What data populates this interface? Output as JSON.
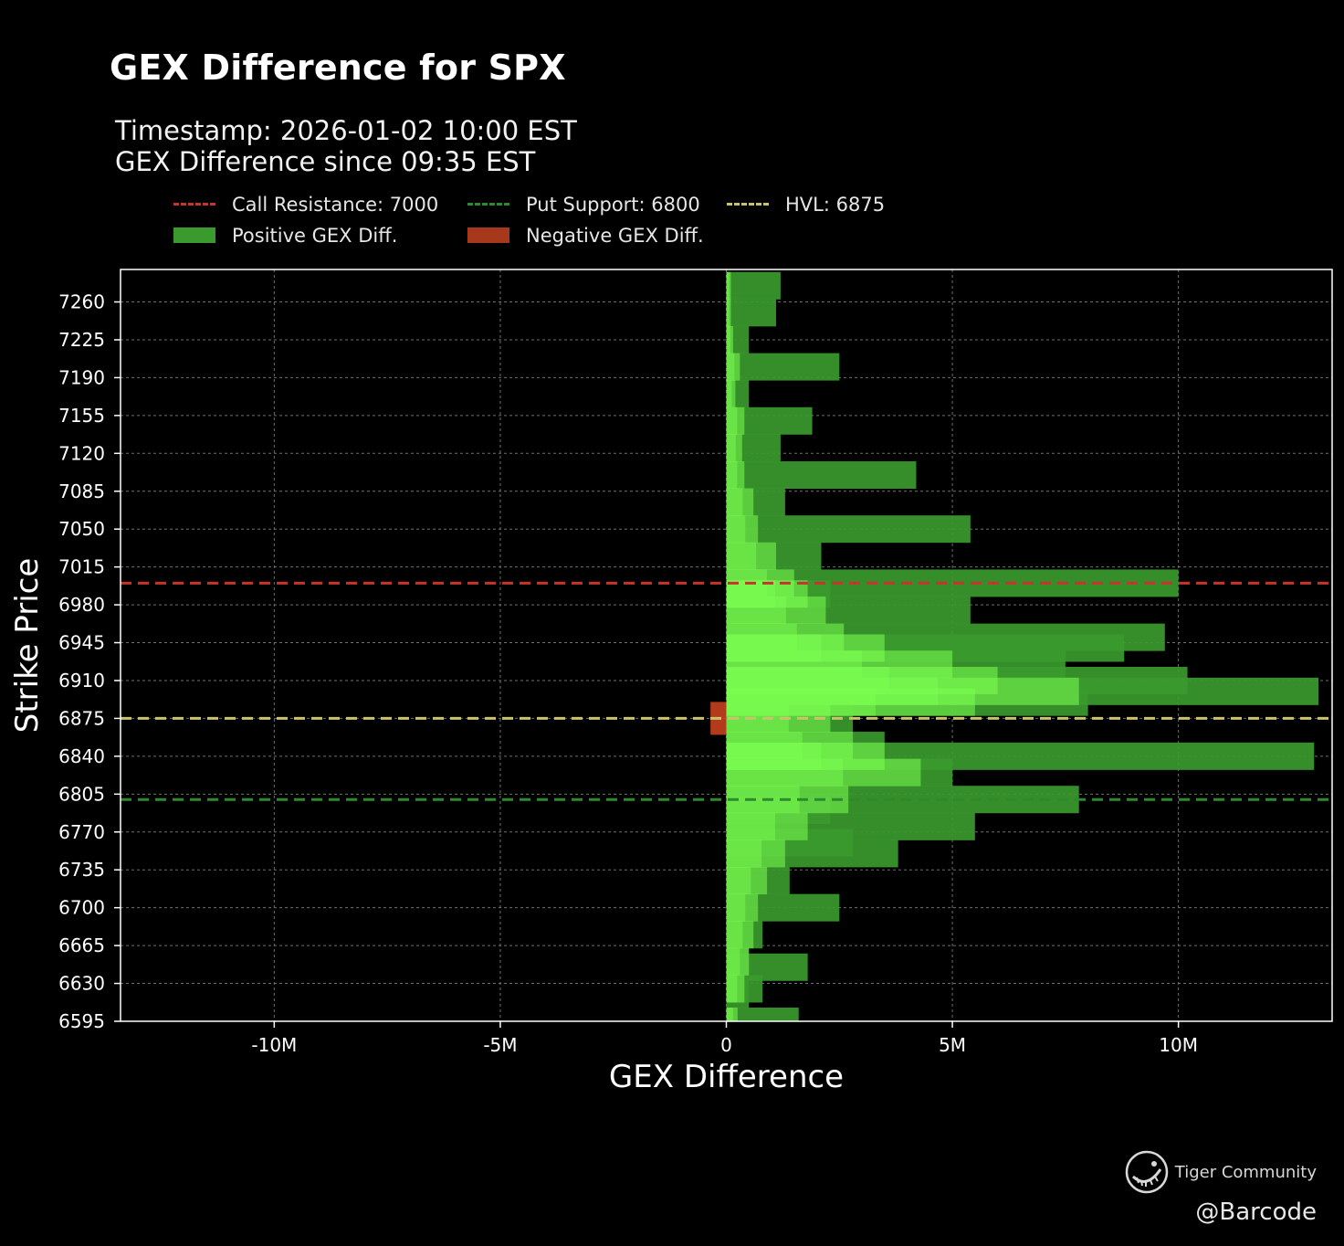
{
  "title": "GEX Difference for SPX",
  "subtitle_line1": "Timestamp: 2026-01-02 10:00 EST",
  "subtitle_line2": "GEX Difference since 09:35 EST",
  "legend": {
    "call_resistance": "Call Resistance: 7000",
    "put_support": "Put Support: 6800",
    "hvl": "HVL: 6875",
    "positive": "Positive GEX Diff.",
    "negative": "Negative GEX Diff."
  },
  "colors": {
    "call_resistance": "#c8332b",
    "put_support": "#2d8a2d",
    "hvl": "#c9c46a",
    "positive_dark": "#3a9a2e",
    "positive_light": "#7cff50",
    "negative": "#c8401f",
    "axis": "#ffffff",
    "grid": "#8c8c8c"
  },
  "watermark": {
    "brand": "Tiger Community",
    "handle": "@Barcode"
  },
  "chart_data": {
    "type": "bar",
    "orientation": "horizontal",
    "xlabel": "GEX Difference",
    "ylabel": "Strike Price",
    "xlim": [
      -13400000,
      13400000
    ],
    "ylim": [
      6595,
      7290
    ],
    "xticks": [
      -10000000,
      -5000000,
      0,
      5000000,
      10000000
    ],
    "xtick_labels": [
      "-10M",
      "-5M",
      "0",
      "5M",
      "10M"
    ],
    "yticks": [
      6595,
      6630,
      6665,
      6700,
      6735,
      6770,
      6805,
      6840,
      6875,
      6910,
      6945,
      6980,
      7015,
      7050,
      7085,
      7120,
      7155,
      7190,
      7225,
      7260
    ],
    "grid": true,
    "reference_lines": [
      {
        "name": "Call Resistance",
        "value": 7000,
        "color": "#c8332b"
      },
      {
        "name": "Put Support",
        "value": 6800,
        "color": "#2d8a2d"
      },
      {
        "name": "HVL",
        "value": 6875,
        "color": "#c9c46a"
      }
    ],
    "series": [
      {
        "name": "Positive GEX Diff.",
        "strikes": [
          6595,
          6620,
          6625,
          6645,
          6650,
          6675,
          6700,
          6725,
          6750,
          6760,
          6775,
          6790,
          6800,
          6825,
          6840,
          6850,
          6875,
          6890,
          6900,
          6910,
          6925,
          6940,
          6950,
          6975,
          6990,
          7000,
          7025,
          7050,
          7075,
          7100,
          7125,
          7150,
          7175,
          7200,
          7225,
          7250,
          7275
        ],
        "values": [
          1600000,
          500000,
          800000,
          1800000,
          500000,
          800000,
          2500000,
          1400000,
          3800000,
          2800000,
          5500000,
          2300000,
          7800000,
          5000000,
          13000000,
          3500000,
          2800000,
          8000000,
          13100000,
          10200000,
          7500000,
          8800000,
          9700000,
          5400000,
          2300000,
          10000000,
          2100000,
          5400000,
          1300000,
          4200000,
          1200000,
          1900000,
          500000,
          2500000,
          500000,
          1100000,
          1200000
        ]
      },
      {
        "name": "Negative GEX Diff.",
        "strikes": [
          6875
        ],
        "values": [
          -350000
        ]
      }
    ],
    "history_overlay": [
      {
        "strike": 6595,
        "value": 250000
      },
      {
        "strike": 6625,
        "value": 400000
      },
      {
        "strike": 6650,
        "value": 500000
      },
      {
        "strike": 6675,
        "value": 600000
      },
      {
        "strike": 6700,
        "value": 700000
      },
      {
        "strike": 6725,
        "value": 900000
      },
      {
        "strike": 6750,
        "value": 1300000
      },
      {
        "strike": 6775,
        "value": 1800000
      },
      {
        "strike": 6800,
        "value": 2700000
      },
      {
        "strike": 6825,
        "value": 4300000
      },
      {
        "strike": 6840,
        "value": 3500000
      },
      {
        "strike": 6850,
        "value": 2800000
      },
      {
        "strike": 6875,
        "value": 2300000
      },
      {
        "strike": 6890,
        "value": 5500000
      },
      {
        "strike": 6900,
        "value": 7800000
      },
      {
        "strike": 6910,
        "value": 6000000
      },
      {
        "strike": 6925,
        "value": 5000000
      },
      {
        "strike": 6940,
        "value": 3500000
      },
      {
        "strike": 6950,
        "value": 2600000
      },
      {
        "strike": 6975,
        "value": 2200000
      },
      {
        "strike": 6990,
        "value": 1800000
      },
      {
        "strike": 7000,
        "value": 1500000
      },
      {
        "strike": 7025,
        "value": 1100000
      },
      {
        "strike": 7050,
        "value": 700000
      },
      {
        "strike": 7075,
        "value": 600000
      },
      {
        "strike": 7100,
        "value": 400000
      },
      {
        "strike": 7125,
        "value": 350000
      },
      {
        "strike": 7150,
        "value": 400000
      },
      {
        "strike": 7175,
        "value": 200000
      },
      {
        "strike": 7200,
        "value": 300000
      },
      {
        "strike": 7225,
        "value": 150000
      },
      {
        "strike": 7250,
        "value": 100000
      },
      {
        "strike": 7275,
        "value": 100000
      }
    ]
  }
}
